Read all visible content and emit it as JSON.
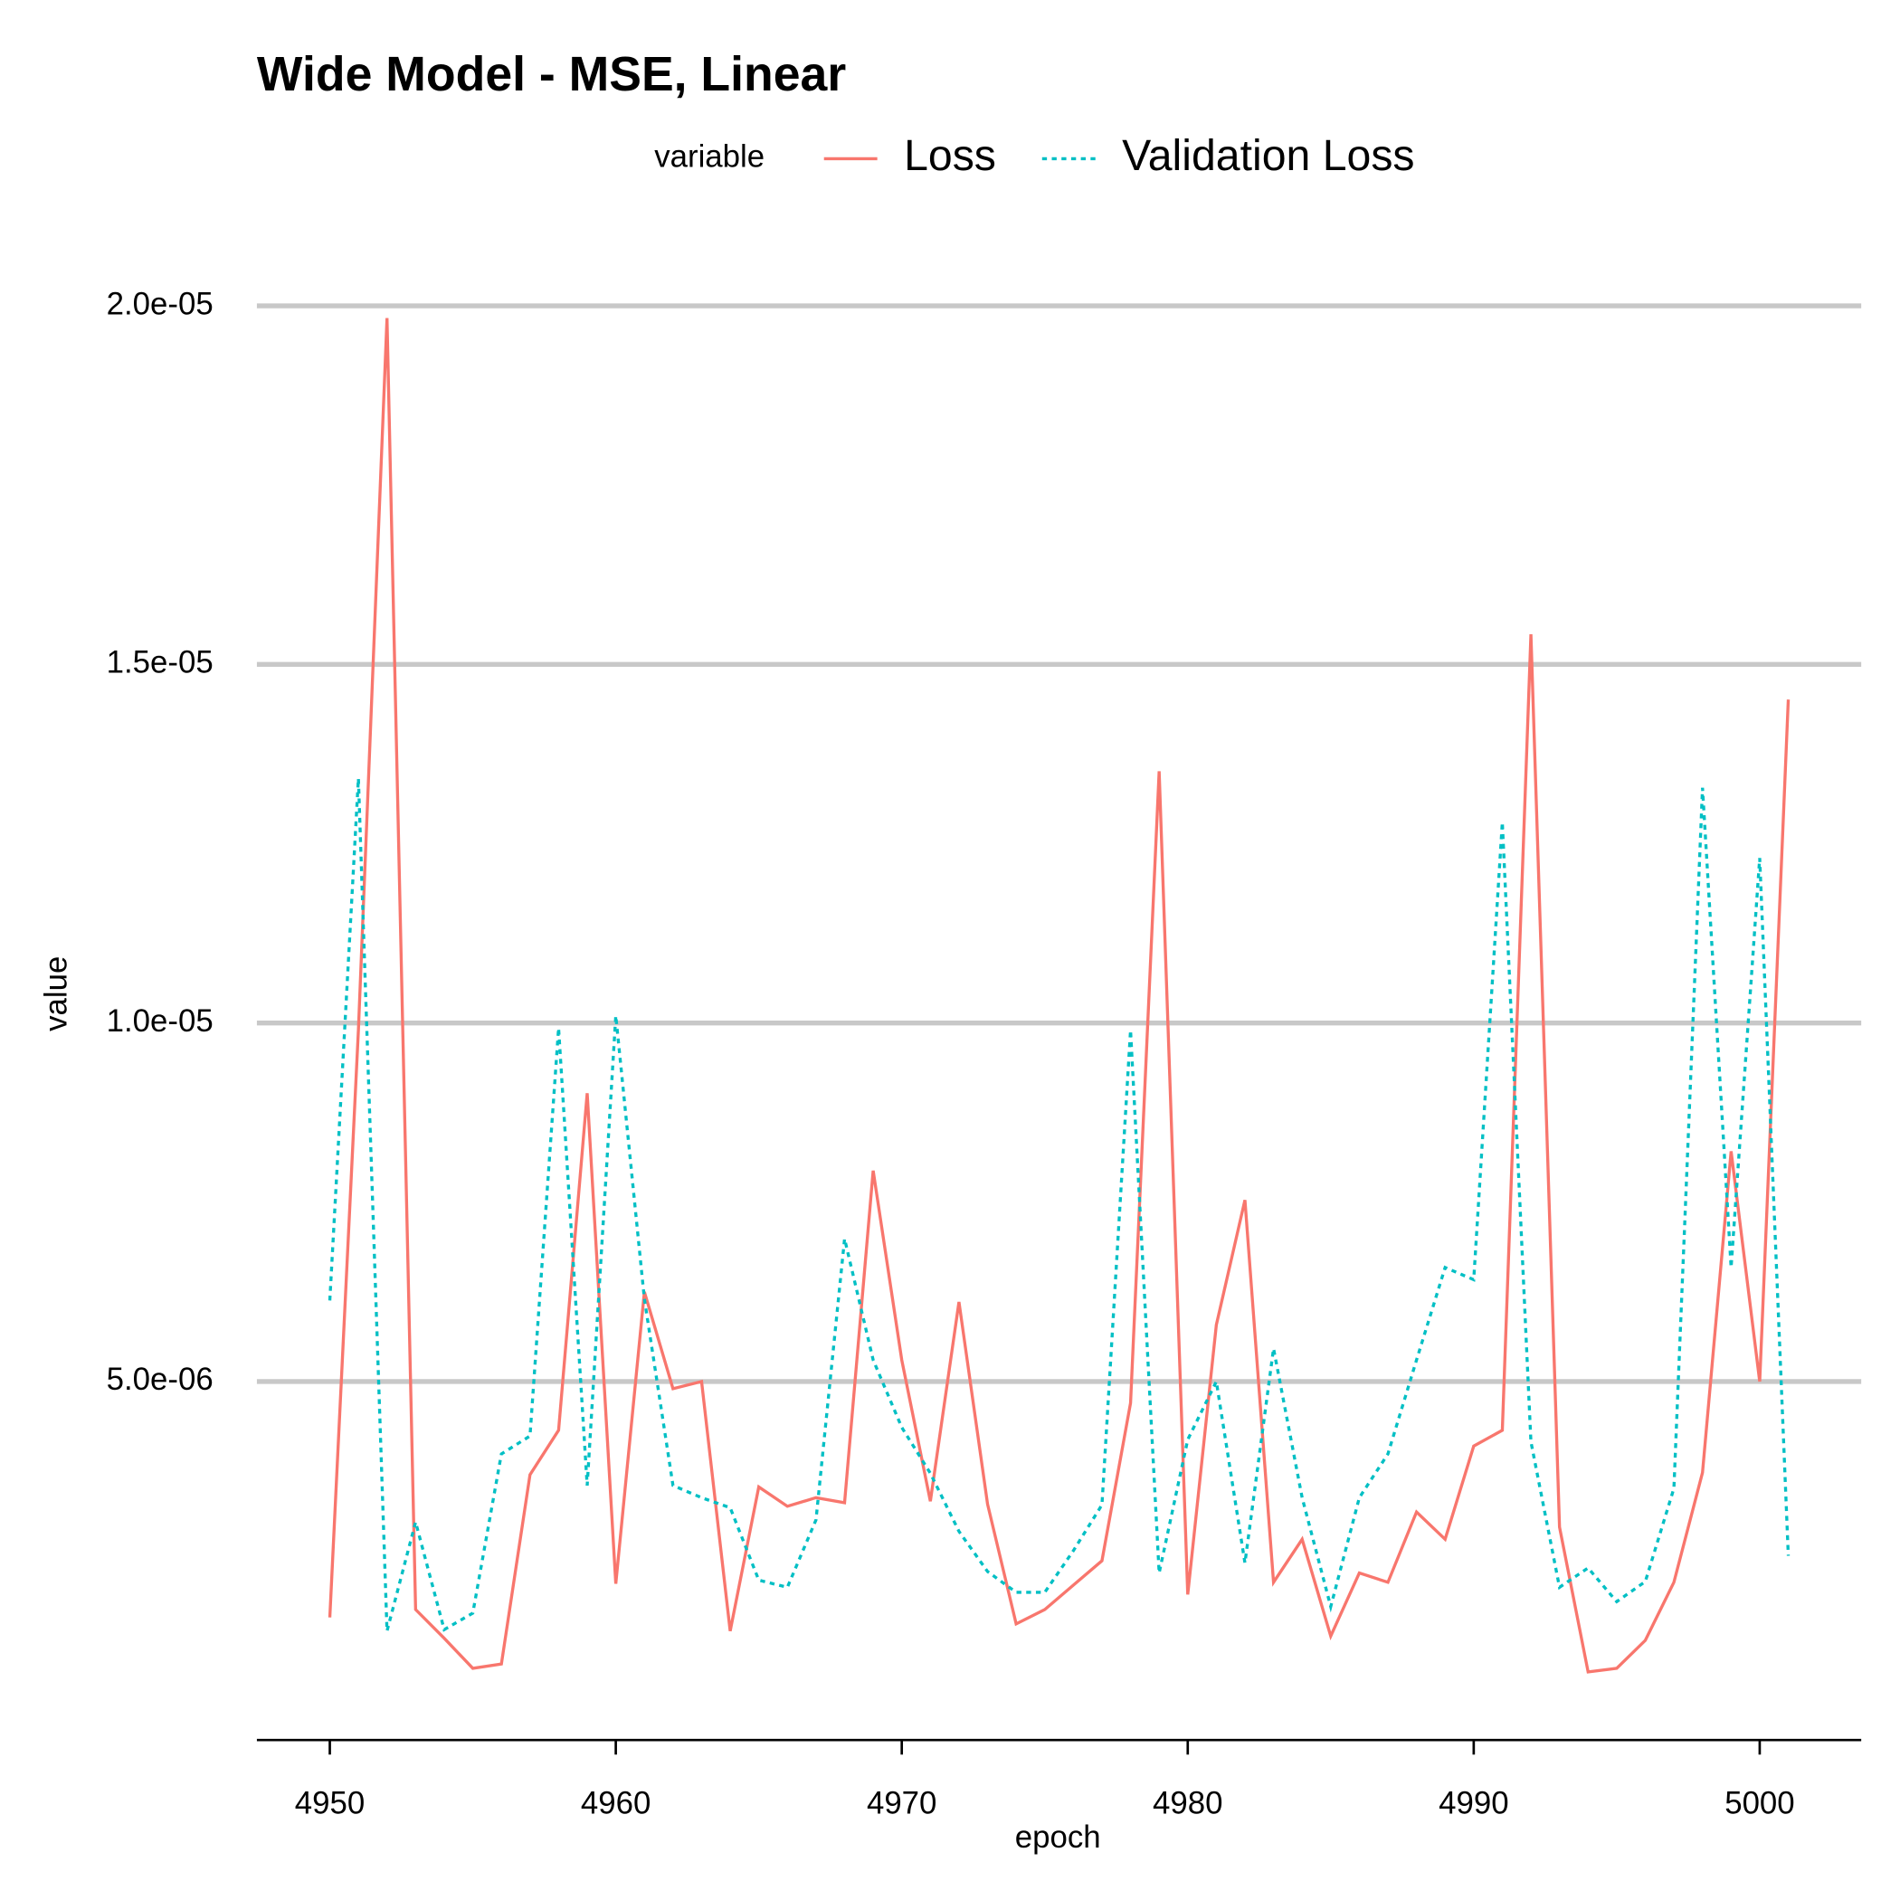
{
  "chart_data": {
    "type": "line",
    "title": "Wide Model - MSE, Linear",
    "x_label": "epoch",
    "y_label": "value",
    "legend_title": "variable",
    "legend_position": "top",
    "grid": true,
    "x": [
      4950,
      4951,
      4952,
      4953,
      4954,
      4955,
      4956,
      4957,
      4958,
      4959,
      4960,
      4961,
      4962,
      4963,
      4964,
      4965,
      4966,
      4967,
      4968,
      4969,
      4970,
      4971,
      4972,
      4973,
      4974,
      4975,
      4976,
      4977,
      4978,
      4979,
      4980,
      4981,
      4982,
      4983,
      4984,
      4985,
      4986,
      4987,
      4988,
      4989,
      4990,
      4991,
      4992,
      4993,
      4994,
      4995,
      4996,
      4997,
      4998,
      4999,
      5000,
      5001
    ],
    "series": [
      {
        "name": "Loss",
        "color": "#F8766D",
        "dash": "solid",
        "values": [
          1.71e-06,
          9.9e-06,
          1.983e-05,
          1.82e-06,
          1.42e-06,
          1e-06,
          1.06e-06,
          3.7e-06,
          4.32e-06,
          9.02e-06,
          2.18e-06,
          6.25e-06,
          4.9e-06,
          5e-06,
          1.52e-06,
          3.53e-06,
          3.26e-06,
          3.38e-06,
          3.31e-06,
          7.94e-06,
          5.3e-06,
          3.33e-06,
          6.11e-06,
          3.29e-06,
          1.62e-06,
          1.82e-06,
          2.16e-06,
          2.5e-06,
          4.7e-06,
          1.351e-05,
          2.03e-06,
          5.79e-06,
          7.53e-06,
          2.2e-06,
          2.8e-06,
          1.45e-06,
          2.33e-06,
          2.2e-06,
          3.18e-06,
          2.8e-06,
          4.1e-06,
          4.32e-06,
          1.542e-05,
          2.97e-06,
          9.5e-07,
          1e-06,
          1.39e-06,
          2.2e-06,
          3.73e-06,
          8.21e-06,
          5e-06,
          1.451e-05
        ]
      },
      {
        "name": "Validation Loss",
        "color": "#00BFC4",
        "dash": "dotted",
        "values": [
          6.13e-06,
          1.341e-05,
          1.52e-06,
          3.04e-06,
          1.54e-06,
          1.77e-06,
          3.99e-06,
          4.24e-06,
          9.93e-06,
          3.55e-06,
          1.01e-05,
          6.15e-06,
          3.55e-06,
          3.38e-06,
          3.24e-06,
          2.23e-06,
          2.13e-06,
          3.07e-06,
          6.99e-06,
          5.3e-06,
          4.36e-06,
          3.72e-06,
          2.91e-06,
          2.35e-06,
          2.06e-06,
          2.06e-06,
          2.64e-06,
          3.28e-06,
          9.9e-06,
          2.33e-06,
          4.19e-06,
          5e-06,
          2.47e-06,
          5.46e-06,
          3.38e-06,
          1.86e-06,
          3.38e-06,
          3.99e-06,
          5.3e-06,
          6.59e-06,
          6.42e-06,
          1.28e-05,
          4.16e-06,
          2.13e-06,
          2.4e-06,
          1.93e-06,
          2.21e-06,
          3.51e-06,
          1.328e-05,
          6.59e-06,
          1.23e-05,
          2.57e-06
        ]
      }
    ],
    "xlim": [
      4947.45,
      5003.55
    ],
    "xticks": [
      4950,
      4960,
      4970,
      4980,
      4990,
      5000
    ],
    "ylim": [
      0,
      2.07e-05
    ],
    "yticks": [
      {
        "value": 5e-06,
        "label": "5.0e-06"
      },
      {
        "value": 1e-05,
        "label": "1.0e-05"
      },
      {
        "value": 1.5e-05,
        "label": "1.5e-05"
      },
      {
        "value": 2e-05,
        "label": "2.0e-05"
      }
    ]
  }
}
